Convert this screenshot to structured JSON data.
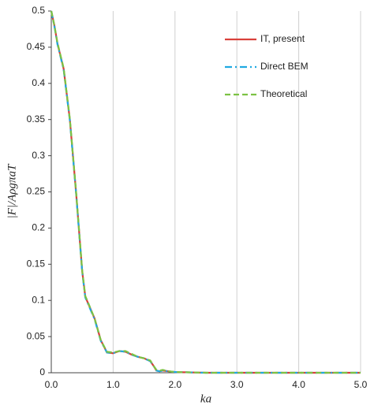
{
  "chart_data": {
    "type": "line",
    "x_label": "ka",
    "y_label": "|F|/AρgπaT",
    "x": [
      0,
      0.05,
      0.1,
      0.2,
      0.3,
      0.4,
      0.5,
      0.55,
      0.6,
      0.7,
      0.8,
      0.9,
      1.0,
      1.1,
      1.2,
      1.3,
      1.4,
      1.5,
      1.6,
      1.65,
      1.7,
      1.75,
      1.8,
      1.9,
      2.0,
      2.5,
      3.0,
      3.5,
      4.0,
      4.5,
      5.0
    ],
    "series": [
      {
        "name": "IT, present",
        "color": "#d9403b",
        "dash": "solid",
        "values": [
          0.5,
          0.48,
          0.455,
          0.42,
          0.35,
          0.25,
          0.14,
          0.105,
          0.095,
          0.075,
          0.045,
          0.028,
          0.027,
          0.03,
          0.029,
          0.025,
          0.022,
          0.02,
          0.016,
          0.01,
          0.003,
          0.002,
          0.003,
          0.002,
          0.001,
          0,
          0,
          0,
          0,
          0,
          0
        ]
      },
      {
        "name": "Direct BEM",
        "color": "#1fa9e1",
        "dash": "dashdot",
        "values": [
          0.5,
          0.479,
          0.454,
          0.419,
          0.349,
          0.249,
          0.139,
          0.104,
          0.094,
          0.074,
          0.044,
          0.028,
          0.027,
          0.03,
          0.029,
          0.025,
          0.022,
          0.02,
          0.016,
          0.01,
          0.003,
          0.002,
          0.003,
          0.002,
          0.001,
          0,
          0,
          0,
          0,
          0,
          0
        ]
      },
      {
        "name": "Theoretical",
        "color": "#7cc243",
        "dash": "dashed",
        "values": [
          0.5,
          0.48,
          0.456,
          0.421,
          0.351,
          0.251,
          0.141,
          0.106,
          0.096,
          0.075,
          0.045,
          0.029,
          0.028,
          0.03,
          0.03,
          0.026,
          0.022,
          0.02,
          0.017,
          0.01,
          0.004,
          0.003,
          0.004,
          0.002,
          0.001,
          0,
          0,
          0,
          0,
          0,
          0
        ]
      }
    ],
    "xlim": [
      0,
      5
    ],
    "ylim": [
      0,
      0.5
    ],
    "xticks": [
      {
        "value": 0,
        "label": "0.0"
      },
      {
        "value": 1,
        "label": "1.0"
      },
      {
        "value": 2,
        "label": "2.0"
      },
      {
        "value": 3,
        "label": "3.0"
      },
      {
        "value": 4,
        "label": "4.0"
      },
      {
        "value": 5,
        "label": "5.0"
      }
    ],
    "yticks": [
      0,
      0.05,
      0.1,
      0.15,
      0.2,
      0.25,
      0.3,
      0.35,
      0.4,
      0.45,
      0.5
    ],
    "grid": "x",
    "legend": "upper right"
  }
}
